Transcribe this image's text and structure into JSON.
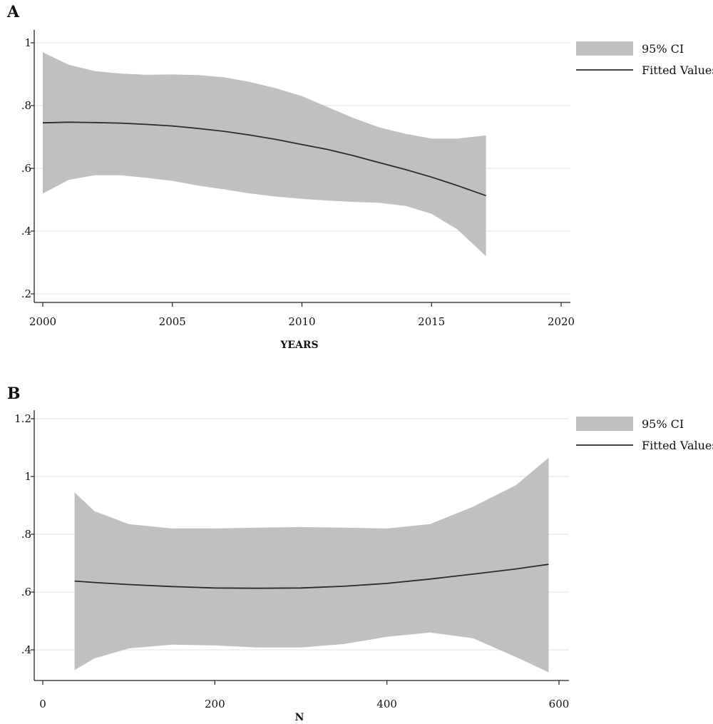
{
  "colors": {
    "band": "#c0c0c0",
    "line": "#2b2b2b",
    "grid": "#e8e8e8",
    "axis": "#222222"
  },
  "chart_data": [
    {
      "panel": "A",
      "type": "line",
      "xlabel": "YEARS",
      "ylabel": "",
      "xlim": [
        2000,
        2020
      ],
      "ylim": [
        0.2,
        1.0
      ],
      "grid": true,
      "legend_placement": "top-right",
      "xticks": [
        {
          "v": 2000,
          "t": "2000"
        },
        {
          "v": 2005,
          "t": "2005"
        },
        {
          "v": 2010,
          "t": "2010"
        },
        {
          "v": 2015,
          "t": "2015"
        },
        {
          "v": 2020,
          "t": "2020"
        }
      ],
      "yticks": [
        {
          "v": 0.2,
          "t": ".2"
        },
        {
          "v": 0.4,
          "t": ".4"
        },
        {
          "v": 0.6,
          "t": ".6"
        },
        {
          "v": 0.8,
          "t": ".8"
        },
        {
          "v": 1.0,
          "t": "1"
        }
      ],
      "series": [
        {
          "name": "95% CI",
          "kind": "band",
          "x": [
            2000,
            2001,
            2002,
            2003,
            2004,
            2005,
            2006,
            2007,
            2008,
            2009,
            2010,
            2011,
            2012,
            2013,
            2014,
            2015,
            2016,
            2017.1
          ],
          "upper": [
            0.97,
            0.93,
            0.91,
            0.902,
            0.898,
            0.899,
            0.897,
            0.89,
            0.875,
            0.855,
            0.83,
            0.795,
            0.76,
            0.73,
            0.71,
            0.695,
            0.695,
            0.705
          ],
          "lower": [
            0.52,
            0.563,
            0.578,
            0.578,
            0.57,
            0.56,
            0.545,
            0.533,
            0.52,
            0.51,
            0.503,
            0.497,
            0.493,
            0.49,
            0.48,
            0.455,
            0.405,
            0.32
          ]
        },
        {
          "name": "Fitted Values",
          "kind": "line",
          "x": [
            2000,
            2001,
            2002,
            2003,
            2004,
            2005,
            2006,
            2007,
            2008,
            2009,
            2010,
            2011,
            2012,
            2013,
            2014,
            2015,
            2016,
            2017.1
          ],
          "y": [
            0.745,
            0.747,
            0.746,
            0.744,
            0.74,
            0.735,
            0.727,
            0.718,
            0.706,
            0.692,
            0.676,
            0.66,
            0.64,
            0.618,
            0.596,
            0.572,
            0.545,
            0.513
          ]
        }
      ]
    },
    {
      "panel": "B",
      "type": "line",
      "xlabel": "N",
      "ylabel": "",
      "xlim": [
        0,
        600
      ],
      "ylim": [
        0.3,
        1.2
      ],
      "grid": true,
      "legend_placement": "top-right",
      "xticks": [
        {
          "v": 0,
          "t": "0"
        },
        {
          "v": 200,
          "t": "200"
        },
        {
          "v": 400,
          "t": "400"
        },
        {
          "v": 600,
          "t": "600"
        }
      ],
      "yticks": [
        {
          "v": 0.4,
          "t": ".4"
        },
        {
          "v": 0.6,
          "t": ".6"
        },
        {
          "v": 0.8,
          "t": ".8"
        },
        {
          "v": 1.0,
          "t": "1"
        },
        {
          "v": 1.2,
          "t": "1.2"
        }
      ],
      "series": [
        {
          "name": "95% CI",
          "kind": "band",
          "x": [
            37,
            60,
            100,
            150,
            200,
            250,
            300,
            350,
            400,
            450,
            500,
            550,
            588
          ],
          "upper": [
            0.945,
            0.88,
            0.835,
            0.82,
            0.82,
            0.823,
            0.825,
            0.823,
            0.82,
            0.835,
            0.895,
            0.97,
            1.065
          ],
          "lower": [
            0.33,
            0.37,
            0.405,
            0.418,
            0.415,
            0.408,
            0.408,
            0.42,
            0.445,
            0.46,
            0.44,
            0.375,
            0.322
          ]
        },
        {
          "name": "Fitted Values",
          "kind": "line",
          "x": [
            37,
            60,
            100,
            150,
            200,
            250,
            300,
            350,
            400,
            450,
            500,
            550,
            588
          ],
          "y": [
            0.638,
            0.633,
            0.626,
            0.619,
            0.614,
            0.613,
            0.614,
            0.62,
            0.63,
            0.645,
            0.662,
            0.68,
            0.696
          ]
        }
      ]
    }
  ]
}
